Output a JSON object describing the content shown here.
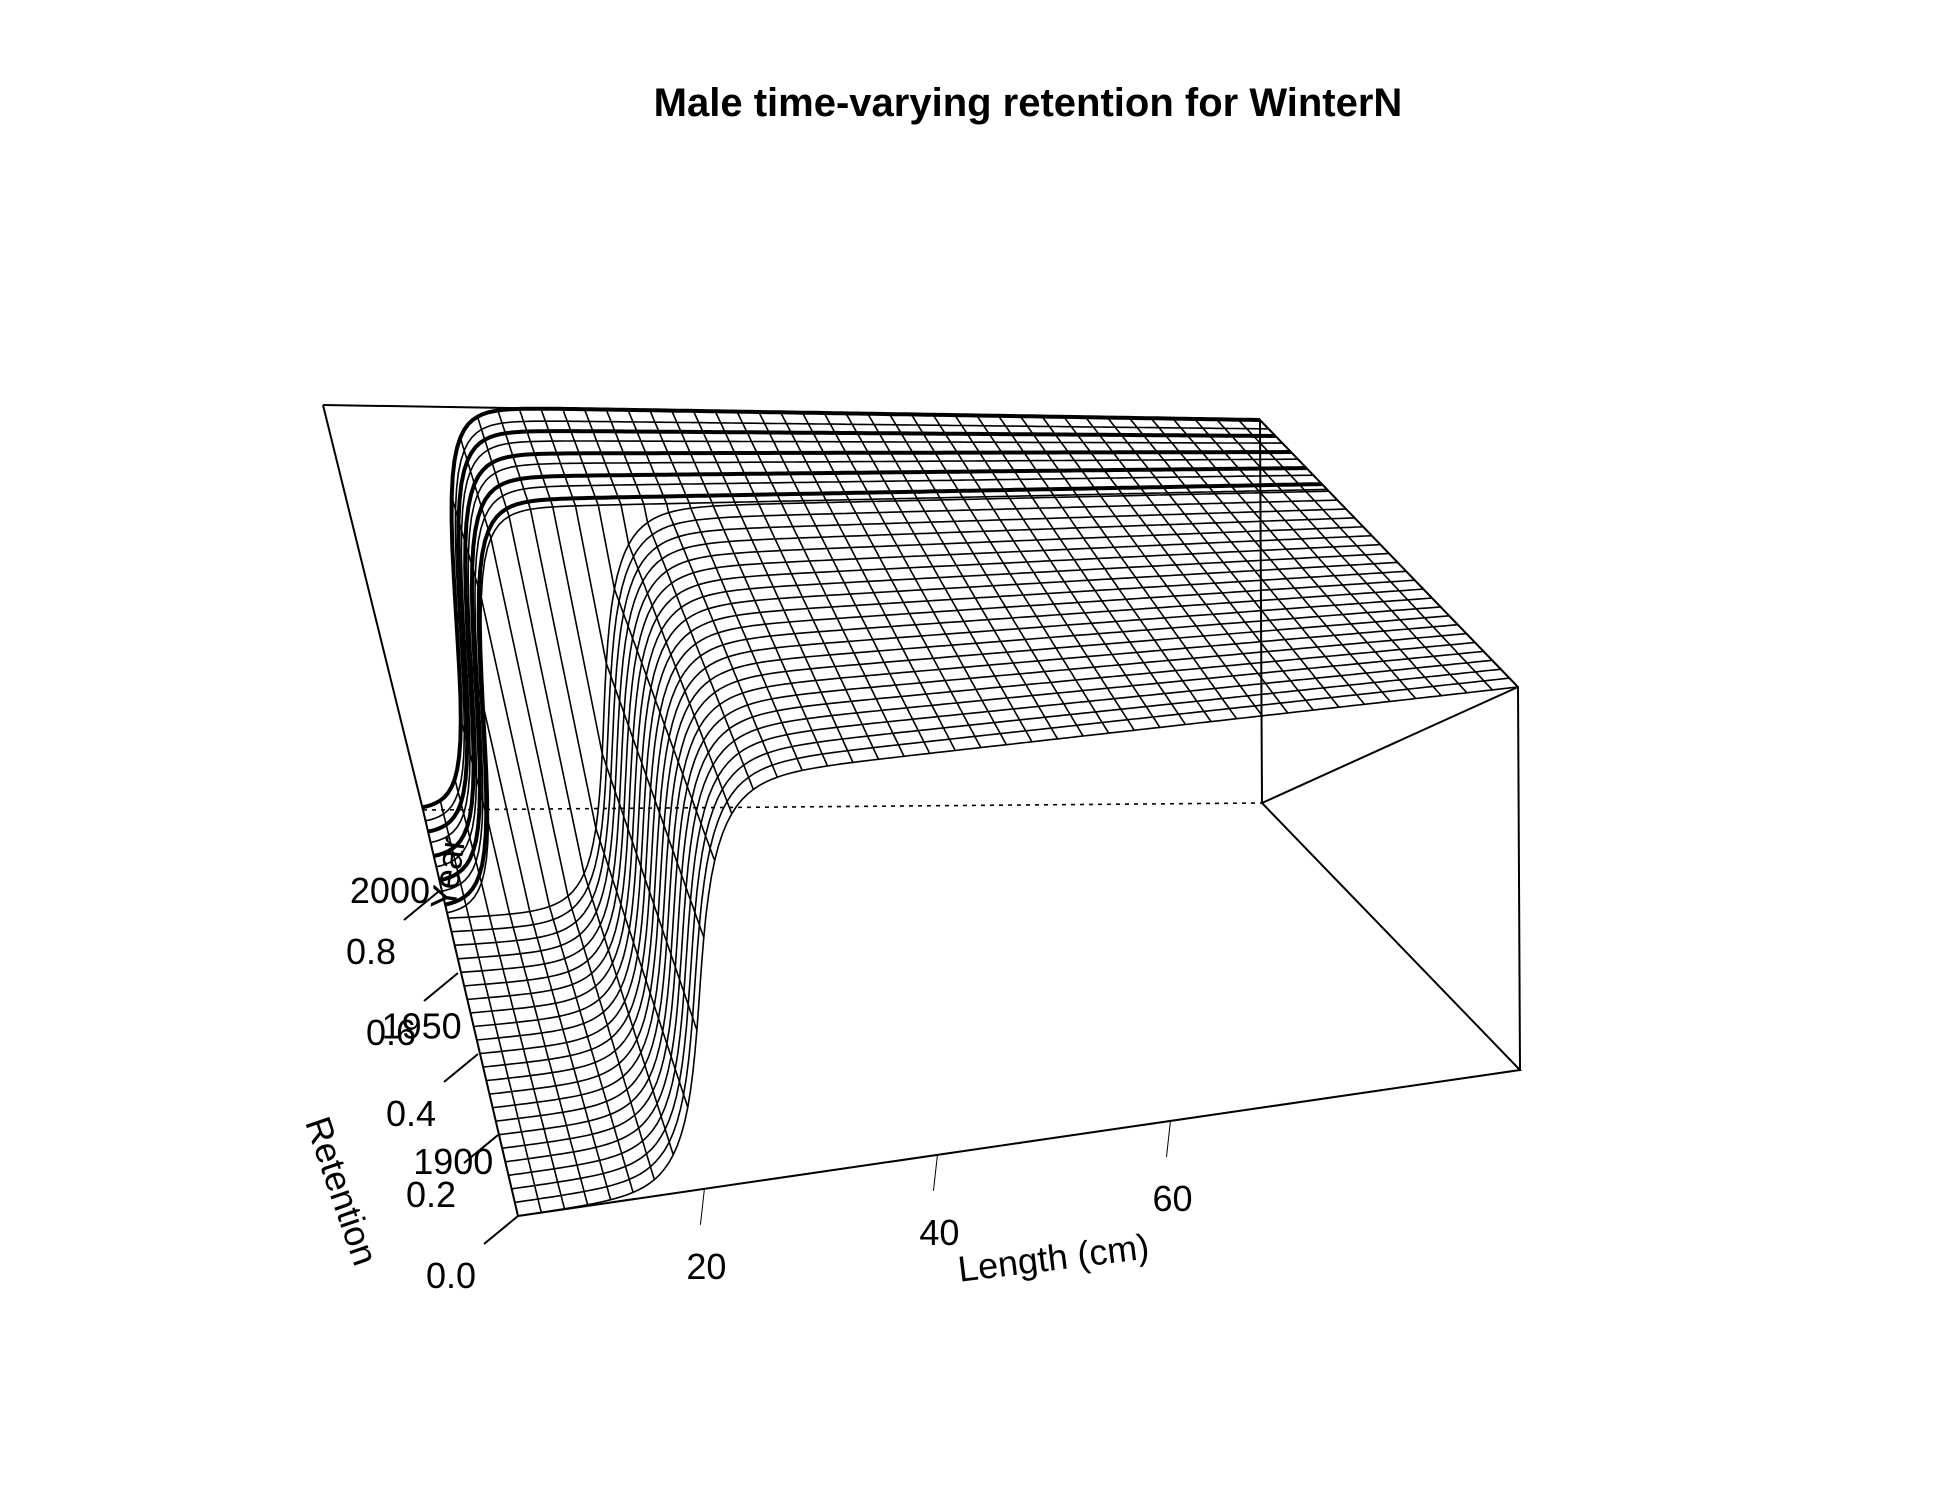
{
  "chart_data": {
    "type": "surface",
    "title": "Male time-varying retention for WinterN",
    "xlabel": "Length (cm)",
    "ylabel": "Year",
    "zlabel": "Retention",
    "xlim": [
      4,
      90
    ],
    "ylim": [
      1880,
      2030
    ],
    "zlim": [
      0,
      1
    ],
    "x_ticks": [
      "20",
      "40",
      "60"
    ],
    "y_ticks": [
      "1900",
      "1950",
      "2000"
    ],
    "z_ticks": [
      "0.0",
      "0.2",
      "0.4",
      "0.6",
      "0.8"
    ],
    "surface_blocks": [
      {
        "years": [
          1880,
          1990
        ],
        "inflection_cm": 23,
        "width_cm": 2.2,
        "asymptote": 1.0
      },
      {
        "years": [
          1991,
          2030
        ],
        "inflection_cm": 12,
        "width_cm": 1.6,
        "asymptote": 1.0
      }
    ]
  }
}
